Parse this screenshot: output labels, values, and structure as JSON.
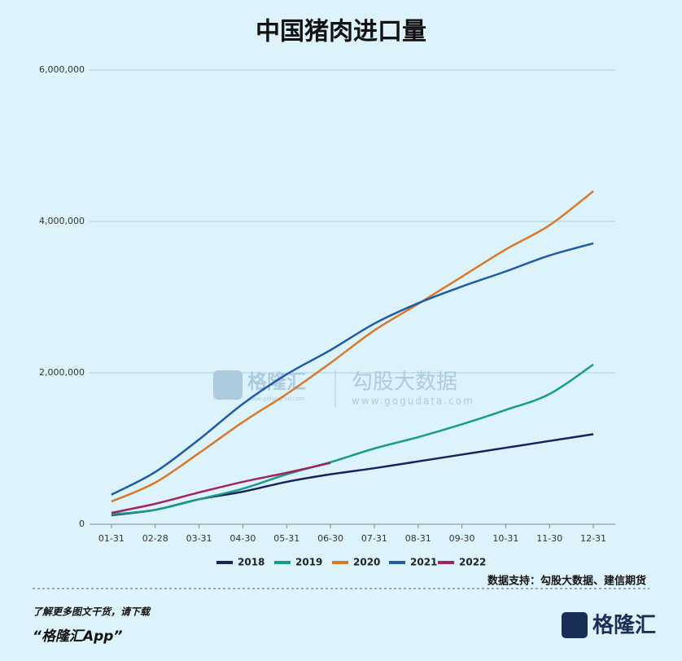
{
  "chart_data": {
    "type": "line",
    "title": "中国猪肉进口量",
    "categories": [
      "01-31",
      "02-28",
      "03-31",
      "04-30",
      "05-31",
      "06-30",
      "07-31",
      "08-31",
      "09-30",
      "10-31",
      "11-30",
      "12-31"
    ],
    "series": [
      {
        "name": "2018",
        "color": "#1b1f5e",
        "values": [
          120000,
          190000,
          330000,
          430000,
          560000,
          660000,
          740000,
          830000,
          920000,
          1010000,
          1100000,
          1190000
        ]
      },
      {
        "name": "2019",
        "color": "#1a9a8a",
        "values": [
          130000,
          190000,
          330000,
          470000,
          660000,
          820000,
          1000000,
          1150000,
          1320000,
          1510000,
          1720000,
          2110000
        ]
      },
      {
        "name": "2020",
        "color": "#d9782a",
        "values": [
          300000,
          550000,
          940000,
          1350000,
          1720000,
          2130000,
          2560000,
          2910000,
          3270000,
          3630000,
          3950000,
          4400000
        ]
      },
      {
        "name": "2021",
        "color": "#1f5aa6",
        "values": [
          390000,
          690000,
          1120000,
          1590000,
          1980000,
          2300000,
          2650000,
          2920000,
          3140000,
          3340000,
          3550000,
          3710000
        ]
      },
      {
        "name": "2022",
        "color": "#a0245e",
        "values": [
          150000,
          270000,
          420000,
          560000,
          680000,
          810000,
          null,
          null,
          null,
          null,
          null,
          null
        ]
      }
    ],
    "ylim": [
      0,
      6000000
    ],
    "yticks": [
      0,
      {
        "value": 2000000,
        "label": "2,000,000"
      },
      {
        "value": 4000000,
        "label": "4,000,000"
      },
      {
        "value": 6000000,
        "label": "6,000,000"
      }
    ],
    "grid": true,
    "legend": "bottom",
    "source": "数据支持：勾股大数据、建信期货",
    "watermark": {
      "brand": "格隆汇",
      "brand_url": "www.gelonghui.com",
      "partner": "勾股大数据",
      "partner_url": "www.gogudata.com"
    }
  },
  "footer": {
    "line1": "了解更多图文干货，请下载",
    "line2": "“格隆汇App”",
    "logo": "格隆汇"
  }
}
